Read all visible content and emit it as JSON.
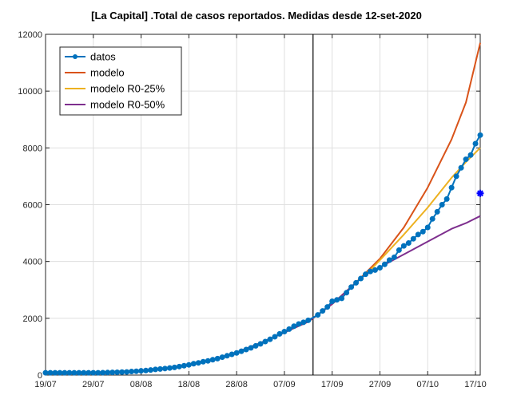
{
  "chart_data": {
    "type": "line",
    "title": "[La Capital] .Total de casos reportados. Medidas desde 12-set-2020",
    "xlabel": "",
    "ylabel": "",
    "x_ticks": [
      "19/07",
      "29/07",
      "08/08",
      "18/08",
      "28/08",
      "07/09",
      "17/09",
      "27/09",
      "07/10",
      "17/10"
    ],
    "y_ticks": [
      "0",
      "2000",
      "4000",
      "6000",
      "8000",
      "10000",
      "12000"
    ],
    "xlim": [
      0,
      91
    ],
    "ylim": [
      0,
      12000
    ],
    "grid": true,
    "legend_position": "top-left",
    "vline_x": 56,
    "series": [
      {
        "name": "datos",
        "color": "#0072bd",
        "style": "line-markers",
        "points": [
          [
            0,
            80
          ],
          [
            1,
            80
          ],
          [
            2,
            80
          ],
          [
            3,
            80
          ],
          [
            4,
            80
          ],
          [
            5,
            80
          ],
          [
            6,
            80
          ],
          [
            7,
            80
          ],
          [
            8,
            80
          ],
          [
            9,
            80
          ],
          [
            10,
            80
          ],
          [
            11,
            80
          ],
          [
            12,
            85
          ],
          [
            13,
            90
          ],
          [
            14,
            95
          ],
          [
            15,
            100
          ],
          [
            16,
            105
          ],
          [
            17,
            110
          ],
          [
            18,
            125
          ],
          [
            19,
            135
          ],
          [
            20,
            150
          ],
          [
            21,
            160
          ],
          [
            22,
            180
          ],
          [
            23,
            200
          ],
          [
            24,
            215
          ],
          [
            25,
            230
          ],
          [
            26,
            250
          ],
          [
            27,
            270
          ],
          [
            28,
            300
          ],
          [
            29,
            330
          ],
          [
            30,
            360
          ],
          [
            31,
            400
          ],
          [
            32,
            430
          ],
          [
            33,
            470
          ],
          [
            34,
            500
          ],
          [
            35,
            540
          ],
          [
            36,
            580
          ],
          [
            37,
            630
          ],
          [
            38,
            680
          ],
          [
            39,
            730
          ],
          [
            40,
            780
          ],
          [
            41,
            840
          ],
          [
            42,
            900
          ],
          [
            43,
            960
          ],
          [
            44,
            1030
          ],
          [
            45,
            1100
          ],
          [
            46,
            1180
          ],
          [
            47,
            1260
          ],
          [
            48,
            1350
          ],
          [
            49,
            1450
          ],
          [
            50,
            1530
          ],
          [
            51,
            1620
          ],
          [
            52,
            1720
          ],
          [
            53,
            1800
          ],
          [
            54,
            1860
          ],
          [
            55,
            1930
          ],
          [
            57,
            2120
          ],
          [
            58,
            2260
          ],
          [
            59,
            2400
          ],
          [
            60,
            2600
          ],
          [
            61,
            2650
          ],
          [
            62,
            2700
          ],
          [
            63,
            2900
          ],
          [
            64,
            3100
          ],
          [
            65,
            3250
          ],
          [
            66,
            3400
          ],
          [
            67,
            3550
          ],
          [
            68,
            3650
          ],
          [
            69,
            3700
          ],
          [
            70,
            3780
          ],
          [
            71,
            3900
          ],
          [
            72,
            4050
          ],
          [
            73,
            4150
          ],
          [
            74,
            4400
          ],
          [
            75,
            4550
          ],
          [
            76,
            4650
          ],
          [
            77,
            4800
          ],
          [
            78,
            4950
          ],
          [
            79,
            5050
          ],
          [
            80,
            5200
          ],
          [
            81,
            5500
          ],
          [
            82,
            5750
          ],
          [
            83,
            6000
          ],
          [
            84,
            6200
          ],
          [
            85,
            6600
          ],
          [
            86,
            7000
          ],
          [
            87,
            7300
          ],
          [
            88,
            7600
          ],
          [
            89,
            7750
          ],
          [
            90,
            8150
          ],
          [
            91,
            8450
          ]
        ]
      },
      {
        "name": "modelo",
        "color": "#d95319",
        "style": "line",
        "points": [
          [
            0,
            60
          ],
          [
            10,
            90
          ],
          [
            20,
            160
          ],
          [
            25,
            240
          ],
          [
            30,
            360
          ],
          [
            35,
            540
          ],
          [
            40,
            800
          ],
          [
            45,
            1130
          ],
          [
            50,
            1500
          ],
          [
            55,
            1880
          ],
          [
            60,
            2500
          ],
          [
            65,
            3260
          ],
          [
            70,
            4100
          ],
          [
            75,
            5200
          ],
          [
            80,
            6600
          ],
          [
            85,
            8300
          ],
          [
            88,
            9600
          ],
          [
            91,
            11700
          ]
        ]
      },
      {
        "name": "modelo R0-25%",
        "color": "#edb120",
        "style": "line",
        "points": [
          [
            0,
            60
          ],
          [
            10,
            90
          ],
          [
            20,
            160
          ],
          [
            25,
            240
          ],
          [
            30,
            360
          ],
          [
            35,
            540
          ],
          [
            40,
            800
          ],
          [
            45,
            1130
          ],
          [
            50,
            1500
          ],
          [
            55,
            1880
          ],
          [
            60,
            2500
          ],
          [
            65,
            3260
          ],
          [
            68,
            3700
          ],
          [
            70,
            4050
          ],
          [
            75,
            4950
          ],
          [
            80,
            5900
          ],
          [
            85,
            6950
          ],
          [
            88,
            7500
          ],
          [
            91,
            8000
          ]
        ]
      },
      {
        "name": "modelo R0-50%",
        "color": "#7e2f8e",
        "style": "line",
        "points": [
          [
            0,
            60
          ],
          [
            10,
            90
          ],
          [
            20,
            160
          ],
          [
            25,
            240
          ],
          [
            30,
            360
          ],
          [
            35,
            540
          ],
          [
            40,
            800
          ],
          [
            45,
            1130
          ],
          [
            50,
            1500
          ],
          [
            55,
            1880
          ],
          [
            60,
            2500
          ],
          [
            65,
            3260
          ],
          [
            67,
            3550
          ],
          [
            68,
            3620
          ],
          [
            70,
            3800
          ],
          [
            75,
            4250
          ],
          [
            80,
            4700
          ],
          [
            85,
            5150
          ],
          [
            88,
            5350
          ],
          [
            91,
            5600
          ]
        ]
      }
    ],
    "marker": {
      "x": 91,
      "y": 6400,
      "color": "#0000ff",
      "symbol": "asterisk"
    }
  }
}
